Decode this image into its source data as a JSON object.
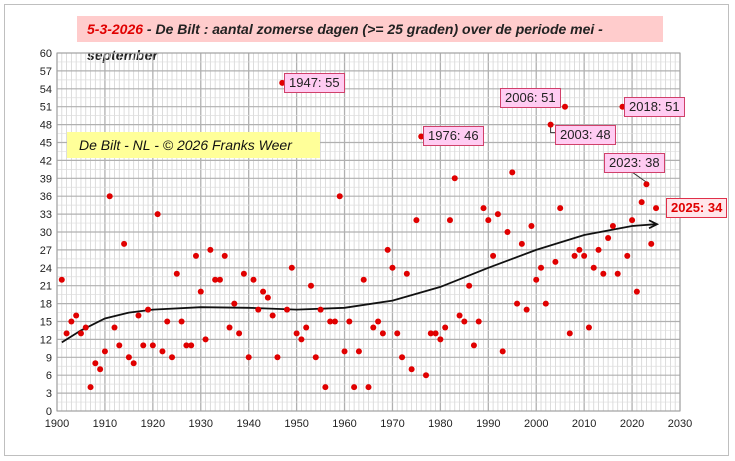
{
  "chart_data": {
    "type": "scatter",
    "title_date": "5-3-2026",
    "title": " - De Bilt : aantal zomerse dagen (>= 25 graden) over de periode mei - september",
    "info_box": "De Bilt - NL  -  © 2026 Franks Weer",
    "xlim": [
      1900,
      2030
    ],
    "ylim": [
      0,
      60
    ],
    "x_ticks": [
      1900,
      1910,
      1920,
      1930,
      1940,
      1950,
      1960,
      1970,
      1980,
      1990,
      2000,
      2010,
      2020,
      2030
    ],
    "y_ticks": [
      0,
      3,
      6,
      9,
      12,
      15,
      18,
      21,
      24,
      27,
      30,
      33,
      36,
      39,
      42,
      45,
      48,
      51,
      54,
      57,
      60
    ],
    "grid": true,
    "series": [
      {
        "name": "zomerse dagen",
        "color": "#e00000",
        "x": [
          1901,
          1902,
          1903,
          1904,
          1905,
          1906,
          1907,
          1908,
          1909,
          1910,
          1911,
          1912,
          1913,
          1914,
          1915,
          1916,
          1917,
          1918,
          1919,
          1920,
          1921,
          1922,
          1923,
          1924,
          1925,
          1926,
          1927,
          1928,
          1929,
          1930,
          1931,
          1932,
          1933,
          1934,
          1935,
          1936,
          1937,
          1938,
          1939,
          1940,
          1941,
          1942,
          1943,
          1944,
          1945,
          1946,
          1947,
          1948,
          1949,
          1950,
          1951,
          1952,
          1953,
          1954,
          1955,
          1956,
          1957,
          1958,
          1959,
          1960,
          1961,
          1962,
          1963,
          1964,
          1965,
          1966,
          1967,
          1968,
          1969,
          1970,
          1971,
          1972,
          1973,
          1974,
          1975,
          1976,
          1977,
          1978,
          1979,
          1980,
          1981,
          1982,
          1983,
          1984,
          1985,
          1986,
          1987,
          1988,
          1989,
          1990,
          1991,
          1992,
          1993,
          1994,
          1995,
          1996,
          1997,
          1998,
          1999,
          2000,
          2001,
          2002,
          2003,
          2004,
          2005,
          2006,
          2007,
          2008,
          2009,
          2010,
          2011,
          2012,
          2013,
          2014,
          2015,
          2016,
          2017,
          2018,
          2019,
          2020,
          2021,
          2022,
          2023,
          2024,
          2025
        ],
        "y": [
          22,
          13,
          15,
          16,
          13,
          14,
          4,
          8,
          7,
          10,
          36,
          14,
          11,
          28,
          9,
          8,
          16,
          11,
          17,
          11,
          33,
          10,
          15,
          9,
          23,
          15,
          11,
          11,
          26,
          20,
          12,
          27,
          22,
          22,
          26,
          14,
          18,
          13,
          23,
          9,
          22,
          17,
          20,
          19,
          16,
          9,
          55,
          17,
          24,
          13,
          12,
          14,
          21,
          9,
          17,
          4,
          15,
          15,
          36,
          10,
          15,
          4,
          10,
          22,
          4,
          14,
          15,
          13,
          27,
          24,
          13,
          9,
          23,
          7,
          32,
          46,
          6,
          13,
          13,
          12,
          14,
          32,
          39,
          16,
          15,
          21,
          11,
          15,
          34,
          32,
          26,
          33,
          10,
          30,
          40,
          18,
          28,
          17,
          31,
          22,
          24,
          18,
          48,
          25,
          34,
          51,
          13,
          26,
          27,
          26,
          14,
          24,
          27,
          23,
          29,
          31,
          23,
          51,
          26,
          32,
          20,
          35,
          38,
          28,
          34
        ]
      }
    ],
    "trend": {
      "x": [
        1901,
        1905,
        1910,
        1915,
        1920,
        1930,
        1940,
        1950,
        1960,
        1970,
        1980,
        1990,
        2000,
        2010,
        2020,
        2025
      ],
      "y": [
        11.5,
        13.5,
        15.5,
        16.5,
        17,
        17.4,
        17.3,
        17,
        17.3,
        18.5,
        20.8,
        24,
        27,
        29.5,
        31,
        31.3
      ]
    },
    "annotations": [
      {
        "text": "1947: 55",
        "year": 1947,
        "value": 55
      },
      {
        "text": "1976: 46",
        "year": 1976,
        "value": 46
      },
      {
        "text": "2006: 51",
        "year": 2006,
        "value": 51
      },
      {
        "text": "2003: 48",
        "year": 2003,
        "value": 48
      },
      {
        "text": "2018: 51",
        "year": 2018,
        "value": 51
      },
      {
        "text": "2023: 38",
        "year": 2023,
        "value": 38
      },
      {
        "text": "2025: 34",
        "year": 2025,
        "value": 34,
        "highlight": true
      }
    ]
  }
}
